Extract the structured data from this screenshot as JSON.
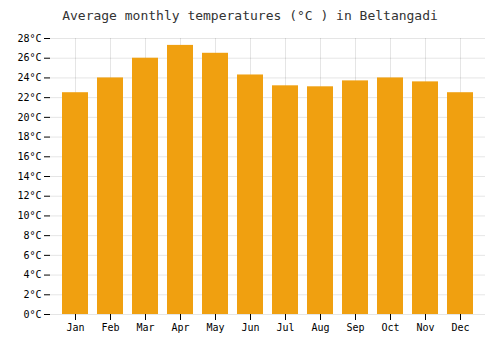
{
  "chart_data": {
    "type": "bar",
    "title": "Average monthly temperatures (°C ) in Beltangadi",
    "categories": [
      "Jan",
      "Feb",
      "Mar",
      "Apr",
      "May",
      "Jun",
      "Jul",
      "Aug",
      "Sep",
      "Oct",
      "Nov",
      "Dec"
    ],
    "values": [
      22.5,
      24.0,
      26.0,
      27.3,
      26.5,
      24.3,
      23.2,
      23.1,
      23.7,
      24.0,
      23.6,
      22.5
    ],
    "color": "#F0A010",
    "ylim": [
      0,
      28
    ],
    "yticks": [
      {
        "value": 0,
        "label": "0°C"
      },
      {
        "value": 2,
        "label": "2°C"
      },
      {
        "value": 4,
        "label": "4°C"
      },
      {
        "value": 6,
        "label": "6°C"
      },
      {
        "value": 8,
        "label": "8°C"
      },
      {
        "value": 10,
        "label": "10°C"
      },
      {
        "value": 12,
        "label": "12°C"
      },
      {
        "value": 14,
        "label": "14°C"
      },
      {
        "value": 16,
        "label": "16°C"
      },
      {
        "value": 18,
        "label": "18°C"
      },
      {
        "value": 20,
        "label": "20°C"
      },
      {
        "value": 22,
        "label": "22°C"
      },
      {
        "value": 24,
        "label": "24°C"
      },
      {
        "value": 26,
        "label": "26°C"
      },
      {
        "value": 28,
        "label": "28°C"
      }
    ],
    "grid": true
  }
}
